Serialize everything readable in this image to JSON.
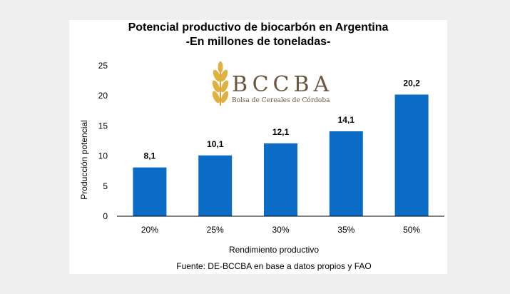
{
  "chart_data": {
    "type": "bar",
    "title": "Potencial productivo de biocarbón en Argentina",
    "subtitle": "-En millones de toneladas-",
    "xlabel": "Rendimiento productivo",
    "ylabel": "Producción potencial",
    "categories": [
      "20%",
      "25%",
      "30%",
      "35%",
      "50%"
    ],
    "values": [
      8.1,
      10.1,
      12.1,
      14.1,
      20.2
    ],
    "value_labels": [
      "8,1",
      "10,1",
      "12,1",
      "14,1",
      "20,2"
    ],
    "ylim": [
      0,
      25
    ],
    "yticks": [
      "0",
      "5",
      "10",
      "15",
      "20",
      "25"
    ],
    "grid": false,
    "bar_color": "#0a6cc4",
    "source": "Fuente: DE-BCCBA en base a datos propios y FAO"
  },
  "logo": {
    "name": "BCCBA",
    "subtitle": "Bolsa de Cereales de Córdoba",
    "color": "#6b5640",
    "icon": "wheat-icon"
  }
}
